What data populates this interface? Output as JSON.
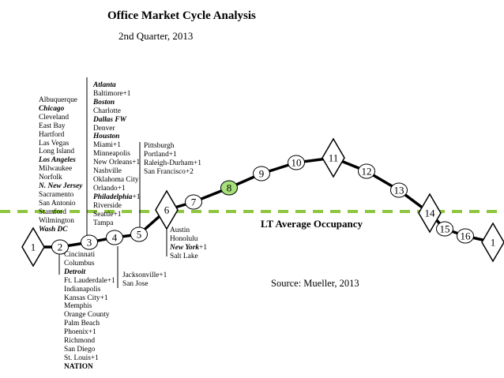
{
  "header": {
    "title": "Office Market Cycle Analysis",
    "subtitle": "2nd Quarter, 2013"
  },
  "lt_average_label": "LT Average Occupancy",
  "source": "Source: Mueller, 2013",
  "colors": {
    "curve": "#000000",
    "average_line": "#8ec63f",
    "highlight_fill": "#a6e07a"
  },
  "cycle_points": [
    {
      "label": "1",
      "shape": "diamond"
    },
    {
      "label": "2",
      "shape": "circle"
    },
    {
      "label": "3",
      "shape": "circle"
    },
    {
      "label": "4",
      "shape": "circle"
    },
    {
      "label": "5",
      "shape": "circle"
    },
    {
      "label": "6",
      "shape": "diamond"
    },
    {
      "label": "7",
      "shape": "circle"
    },
    {
      "label": "8",
      "shape": "circle",
      "highlight": true
    },
    {
      "label": "9",
      "shape": "circle"
    },
    {
      "label": "10",
      "shape": "circle"
    },
    {
      "label": "11",
      "shape": "diamond"
    },
    {
      "label": "12",
      "shape": "circle"
    },
    {
      "label": "13",
      "shape": "circle"
    },
    {
      "label": "14",
      "shape": "diamond"
    },
    {
      "label": "15",
      "shape": "circle"
    },
    {
      "label": "16",
      "shape": "circle"
    },
    {
      "label": "1",
      "shape": "diamond"
    }
  ],
  "markets": {
    "point_1": [
      {
        "name": "Albuquerque"
      },
      {
        "name": "Chicago",
        "style": "bi"
      },
      {
        "name": "Cleveland"
      },
      {
        "name": "East Bay"
      },
      {
        "name": "Hartford"
      },
      {
        "name": "Las Vegas"
      },
      {
        "name": "Long Island"
      },
      {
        "name": "Los Angeles",
        "style": "bi"
      },
      {
        "name": "Milwaukee"
      },
      {
        "name": "Norfolk"
      },
      {
        "name": "N. New Jersey",
        "style": "bi"
      },
      {
        "name": "Sacramento"
      },
      {
        "name": "San Antonio"
      },
      {
        "name": "Stamford"
      },
      {
        "name": "Wilmington"
      },
      {
        "name": "Wash DC",
        "style": "bi"
      }
    ],
    "point_2": [
      {
        "name": "Cincinnati"
      },
      {
        "name": "Columbus"
      },
      {
        "name": "Detroit",
        "style": "bi"
      },
      {
        "name": "Ft. Lauderdale+1"
      },
      {
        "name": "Indianapolis"
      },
      {
        "name": "Kansas City+1"
      },
      {
        "name": "Memphis"
      },
      {
        "name": "Orange County"
      },
      {
        "name": "Palm Beach"
      },
      {
        "name": "Phoenix+1"
      },
      {
        "name": "Richmond"
      },
      {
        "name": "San Diego"
      },
      {
        "name": "St. Louis+1"
      },
      {
        "name": "NATION",
        "style": "b"
      }
    ],
    "point_3": [
      {
        "name": "Atlanta",
        "style": "bi"
      },
      {
        "name": "Baltimore+1"
      },
      {
        "name": "Boston",
        "style": "bi"
      },
      {
        "name": "Charlotte"
      },
      {
        "name": "Dallas FW",
        "style": "bi"
      },
      {
        "name": "Denver"
      },
      {
        "name": "Houston",
        "style": "bi"
      },
      {
        "name": "Miami+1"
      },
      {
        "name": "Minneapolis"
      },
      {
        "name": "New Orleans+1"
      },
      {
        "name": "Nashville"
      },
      {
        "name": "Oklahoma City"
      },
      {
        "name": "Orlando+1"
      },
      {
        "name": "Philadelphia",
        "suffix": "+1",
        "style": "bi"
      },
      {
        "name": "Riverside"
      },
      {
        "name": "Seattle+1"
      },
      {
        "name": "Tampa"
      }
    ],
    "point_4": [
      {
        "name": "Jacksonville+1"
      },
      {
        "name": "San Jose"
      }
    ],
    "point_5": [
      {
        "name": "Pittsburgh"
      },
      {
        "name": "Portland+1"
      },
      {
        "name": "Raleigh-Durham+1"
      },
      {
        "name": "San Francisco+2"
      }
    ],
    "point_6": [
      {
        "name": "Austin"
      },
      {
        "name": "Honolulu"
      },
      {
        "name": "New York",
        "suffix": "+1",
        "style": "bi"
      },
      {
        "name": "Salt Lake"
      }
    ]
  }
}
